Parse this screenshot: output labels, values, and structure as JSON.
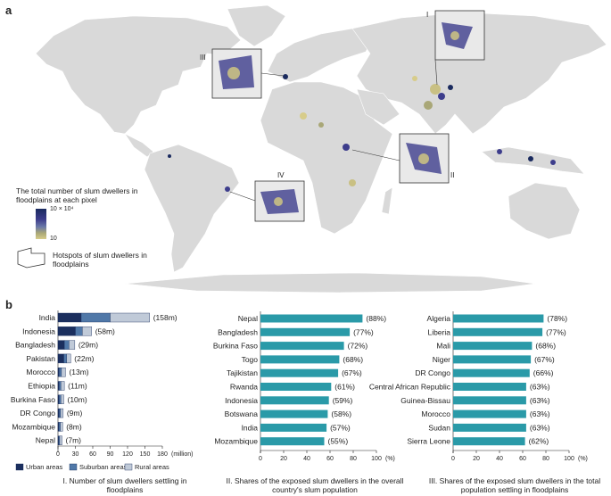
{
  "panel_a": {
    "letter": "a",
    "legend": {
      "title": "The total number of slum dwellers in floodplains at each pixel",
      "max_label": "10 × 10⁴",
      "min_label": "10",
      "hotspot_label": "Hotspots of slum dwellers in floodplains",
      "colormap": [
        "#1a2a5e",
        "#3d3d8c",
        "#6c7aa8",
        "#a9a777",
        "#d7cc8a"
      ]
    },
    "insets": [
      "I",
      "II",
      "III",
      "IV"
    ]
  },
  "panel_b": {
    "letter": "b"
  },
  "chart_data": [
    {
      "type": "bar",
      "orientation": "horizontal",
      "stacked": true,
      "categories": [
        "India",
        "Indonesia",
        "Bangladesh",
        "Pakistan",
        "Morocco",
        "Ethiopia",
        "Burkina Faso",
        "DR Congo",
        "Mozambique",
        "Nepal"
      ],
      "series": [
        {
          "name": "Urban areas",
          "color": "#1b2f5e",
          "values": [
            40,
            30,
            11,
            10,
            2,
            2,
            2,
            2,
            1.5,
            1
          ]
        },
        {
          "name": "Suburban areas",
          "color": "#5078a8",
          "values": [
            50,
            12,
            8,
            5,
            4,
            3,
            3,
            2.5,
            2.5,
            2
          ]
        },
        {
          "name": "Rural areas",
          "color": "#c0cad8",
          "values": [
            68,
            16,
            10,
            7,
            7,
            6,
            5,
            4.5,
            4,
            4
          ]
        }
      ],
      "value_labels": [
        "(158m)",
        "(58m)",
        "(29m)",
        "(22m)",
        "(13m)",
        "(11m)",
        "(10m)",
        "(9m)",
        "(8m)",
        "(7m)"
      ],
      "x_ticks": [
        "0",
        "30",
        "60",
        "90",
        "120",
        "150",
        "180"
      ],
      "x_unit": "(million)",
      "xlim": [
        0,
        180
      ],
      "caption": "I. Number of slum dwellers settling in floodplains",
      "legend_position": "bottom"
    },
    {
      "type": "bar",
      "orientation": "horizontal",
      "categories": [
        "Nepal",
        "Bangladesh",
        "Burkina Faso",
        "Togo",
        "Tajikistan",
        "Rwanda",
        "Indonesia",
        "Botswana",
        "India",
        "Mozambique"
      ],
      "values": [
        88,
        77,
        72,
        68,
        67,
        61,
        59,
        58,
        57,
        55
      ],
      "value_labels": [
        "(88%)",
        "(77%)",
        "(72%)",
        "(68%)",
        "(67%)",
        "(61%)",
        "(59%)",
        "(58%)",
        "(57%)",
        "(55%)"
      ],
      "x_ticks": [
        "0",
        "20",
        "40",
        "60",
        "80",
        "100"
      ],
      "x_unit": "(%)",
      "xlim": [
        0,
        100
      ],
      "color": "#2a9aa8",
      "caption": "II. Shares of the exposed slum dwellers in the overall country's slum population"
    },
    {
      "type": "bar",
      "orientation": "horizontal",
      "categories": [
        "Algeria",
        "Liberia",
        "Mali",
        "Niger",
        "DR Congo",
        "Central African Republic",
        "Guinea-Bissau",
        "Morocco",
        "Sudan",
        "Sierra Leone"
      ],
      "values": [
        78,
        77,
        68,
        67,
        66,
        63,
        63,
        63,
        63,
        62
      ],
      "value_labels": [
        "(78%)",
        "(77%)",
        "(68%)",
        "(67%)",
        "(66%)",
        "(63%)",
        "(63%)",
        "(63%)",
        "(63%)",
        "(62%)"
      ],
      "x_ticks": [
        "0",
        "20",
        "40",
        "60",
        "80",
        "100"
      ],
      "x_unit": "(%)",
      "xlim": [
        0,
        100
      ],
      "color": "#2a9aa8",
      "caption": "III. Shares of  the exposed slum dwellers in the total population settling in floodplains"
    }
  ]
}
